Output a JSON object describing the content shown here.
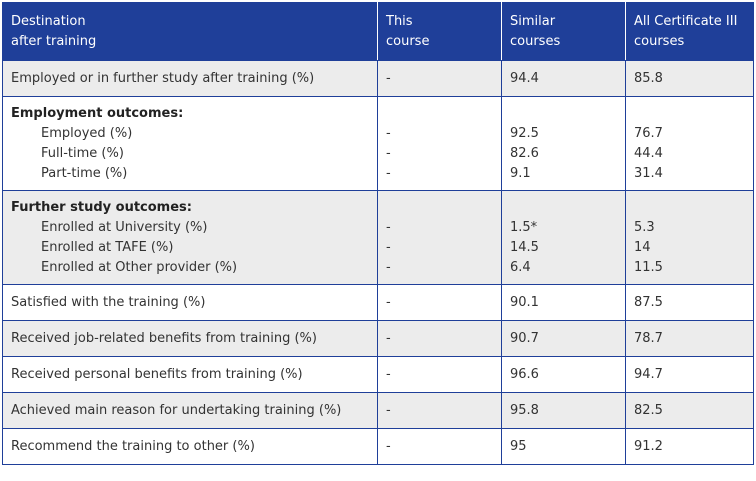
{
  "headers": [
    "Destination\nafter training",
    "This\ncourse",
    "Similar\ncourses",
    "All Certificate III\ncourses"
  ],
  "headers_lines": [
    [
      "Destination",
      "after training"
    ],
    [
      "This",
      "course"
    ],
    [
      "Similar",
      "courses"
    ],
    [
      "All Certificate III",
      "courses"
    ]
  ],
  "row_employed_or_study": {
    "label": "Employed or in further study after training (%)",
    "this": "-",
    "similar": "94.4",
    "all": "85.8"
  },
  "employment": {
    "title": "Employment outcomes:",
    "items": [
      {
        "label": "Employed (%)",
        "this": "-",
        "similar": "92.5",
        "all": "76.7"
      },
      {
        "label": "Full-time (%)",
        "this": "-",
        "similar": "82.6",
        "all": "44.4"
      },
      {
        "label": "Part-time (%)",
        "this": "-",
        "similar": "9.1",
        "all": "31.4"
      }
    ]
  },
  "further_study": {
    "title": "Further study outcomes:",
    "items": [
      {
        "label": "Enrolled at University (%)",
        "this": "-",
        "similar": "1.5*",
        "all": "5.3"
      },
      {
        "label": "Enrolled at TAFE (%)",
        "this": "-",
        "similar": "14.5",
        "all": "14"
      },
      {
        "label": "Enrolled at Other provider (%)",
        "this": "-",
        "similar": "6.4",
        "all": "11.5"
      }
    ]
  },
  "rows": [
    {
      "label": "Satisfied with the training (%)",
      "this": "-",
      "similar": "90.1",
      "all": "87.5"
    },
    {
      "label": "Received job-related benefits from training (%)",
      "this": "-",
      "similar": "90.7",
      "all": "78.7"
    },
    {
      "label": "Received personal benefits from training (%)",
      "this": "-",
      "similar": "96.6",
      "all": "94.7"
    },
    {
      "label": "Achieved main reason for undertaking training (%)",
      "this": "-",
      "similar": "95.8",
      "all": "82.5"
    },
    {
      "label": "Recommend the training to other (%)",
      "this": "-",
      "similar": "95",
      "all": "91.2"
    }
  ]
}
